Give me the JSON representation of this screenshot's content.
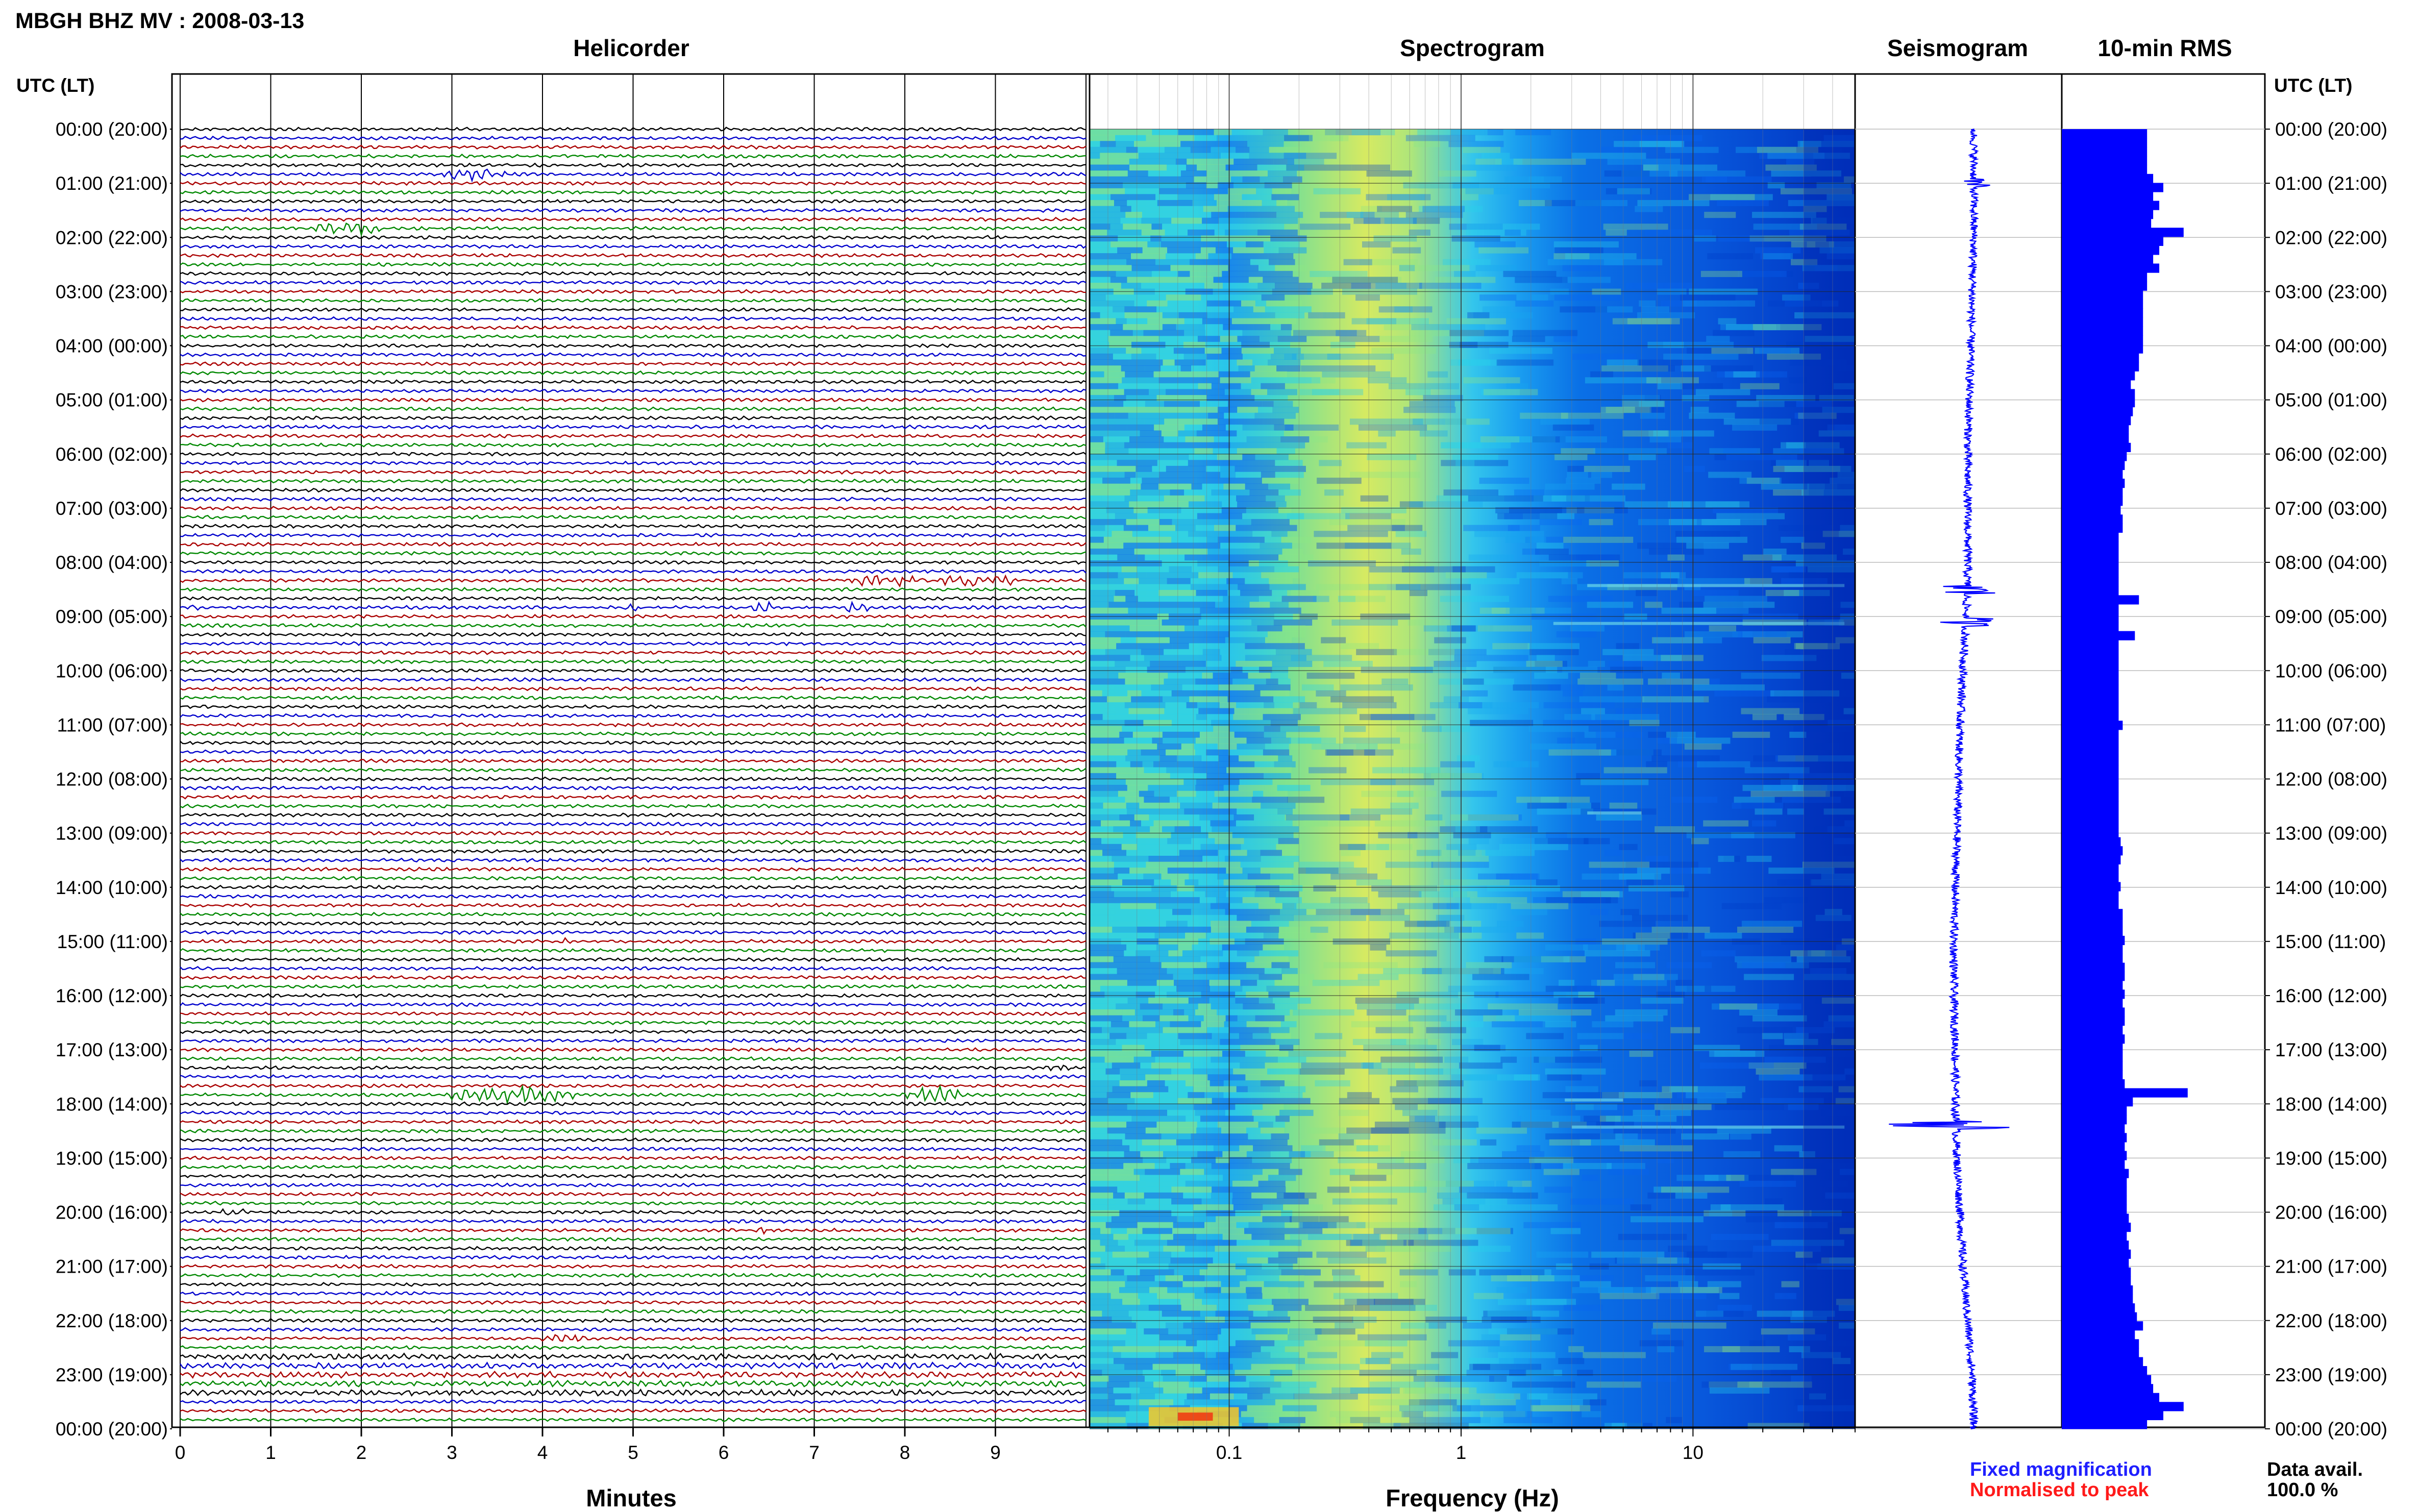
{
  "header": {
    "station_title": "MBGH BHZ MV : 2008-03-13",
    "time_axis_label": "UTC (LT)"
  },
  "panels": {
    "helicorder": "Helicorder",
    "spectrogram": "Spectrogram",
    "seismogram": "Seismogram",
    "rms": "10-min RMS"
  },
  "legend": {
    "fixed": "Fixed magnification",
    "normalised": "Normalised to peak",
    "fixed_color": "#1f1fff",
    "normalised_color": "#ff1a1a"
  },
  "data_avail": {
    "label": "Data avail.",
    "value": "100.0 %"
  },
  "colors": {
    "trace_cycle": [
      "#000000",
      "#0000cc",
      "#aa0000",
      "#008800"
    ],
    "rms_bar": "#0000ff",
    "seismogram": "#0000ff"
  },
  "chart_data": [
    {
      "type": "line",
      "name": "helicorder",
      "title": "Helicorder",
      "xlabel": "Minutes",
      "xlim": [
        0,
        10
      ],
      "xticks": [
        "0",
        "1",
        "2",
        "3",
        "4",
        "5",
        "6",
        "7",
        "8",
        "9"
      ],
      "rows_per_hour": 6,
      "total_hours": 24,
      "ylabels": [
        "00:00 (20:00)",
        "01:00 (21:00)",
        "02:00 (22:00)",
        "03:00 (23:00)",
        "04:00 (00:00)",
        "05:00 (01:00)",
        "06:00 (02:00)",
        "07:00 (03:00)",
        "08:00 (04:00)",
        "09:00 (05:00)",
        "10:00 (06:00)",
        "11:00 (07:00)",
        "12:00 (08:00)",
        "13:00 (09:00)",
        "14:00 (10:00)",
        "15:00 (11:00)",
        "16:00 (12:00)",
        "17:00 (13:00)",
        "18:00 (14:00)",
        "19:00 (15:00)",
        "20:00 (16:00)",
        "21:00 (17:00)",
        "22:00 (18:00)",
        "23:00 (19:00)",
        "00:00 (20:00)"
      ],
      "events": [
        {
          "row": 5,
          "start_min": 2.9,
          "end_min": 3.6,
          "amp": 2.5
        },
        {
          "row": 11,
          "start_min": 1.5,
          "end_min": 2.2,
          "amp": 3.0
        },
        {
          "row": 50,
          "start_min": 7.3,
          "end_min": 9.2,
          "amp": 3.0
        },
        {
          "row": 53,
          "start_min": 0.0,
          "end_min": 0.2,
          "amp": 2.0
        },
        {
          "row": 53,
          "start_min": 4.9,
          "end_min": 5.1,
          "amp": 2.0
        },
        {
          "row": 53,
          "start_min": 6.3,
          "end_min": 6.6,
          "amp": 2.0
        },
        {
          "row": 53,
          "start_min": 7.3,
          "end_min": 7.6,
          "amp": 2.5
        },
        {
          "row": 90,
          "start_min": 4.2,
          "end_min": 4.3,
          "amp": 1.5
        },
        {
          "row": 104,
          "start_min": 9.6,
          "end_min": 9.9,
          "amp": 2.0
        },
        {
          "row": 107,
          "start_min": 3.0,
          "end_min": 4.4,
          "amp": 4.0
        },
        {
          "row": 107,
          "start_min": 8.0,
          "end_min": 8.6,
          "amp": 4.0
        },
        {
          "row": 120,
          "start_min": 0.4,
          "end_min": 0.7,
          "amp": 2.0
        },
        {
          "row": 122,
          "start_min": 6.3,
          "end_min": 6.5,
          "amp": 1.5
        },
        {
          "row": 134,
          "start_min": 4.0,
          "end_min": 4.5,
          "amp": 1.5
        }
      ]
    },
    {
      "type": "heatmap",
      "name": "spectrogram",
      "title": "Spectrogram",
      "xlabel": "Frequency (Hz)",
      "xscale": "log",
      "xlim": [
        0.025,
        50
      ],
      "xticks": [
        {
          "value": 0.1,
          "label": "0.1"
        },
        {
          "value": 1,
          "label": "1"
        },
        {
          "value": 10,
          "label": "10"
        }
      ],
      "colormap": [
        "#003cc8",
        "#0a64f0",
        "#16a6f0",
        "#28d2ec",
        "#8ce686",
        "#dcec5a",
        "#f4c828",
        "#f03c14"
      ]
    },
    {
      "type": "line",
      "name": "seismogram",
      "title": "Seismogram",
      "hourly_offset": [
        0.5,
        0.5,
        0.5,
        0.45,
        0.4,
        0.35,
        0.3,
        0.3,
        0.3,
        0.25,
        0.15,
        0.05,
        0.0,
        -0.05,
        -0.1,
        -0.15,
        -0.15,
        -0.1,
        -0.1,
        -0.05,
        0.05,
        0.15,
        0.3,
        0.45,
        0.5
      ],
      "spikes": [
        {
          "hour": 1.0,
          "amp": 0.3
        },
        {
          "hour": 8.5,
          "amp": 0.8
        },
        {
          "hour": 9.1,
          "amp": 0.6
        },
        {
          "hour": 18.4,
          "amp": 1.6
        }
      ]
    },
    {
      "type": "bar",
      "name": "rms",
      "title": "10-min RMS",
      "orientation": "horizontal",
      "values": [
        42,
        42,
        42,
        42,
        42,
        45,
        50,
        45,
        48,
        45,
        44,
        60,
        50,
        48,
        45,
        48,
        42,
        42,
        40,
        40,
        40,
        40,
        40,
        40,
        40,
        38,
        38,
        36,
        34,
        36,
        36,
        35,
        34,
        33,
        33,
        34,
        32,
        31,
        30,
        31,
        30,
        30,
        29,
        30,
        30,
        28,
        28,
        28,
        28,
        28,
        28,
        28,
        38,
        28,
        28,
        28,
        36,
        28,
        28,
        28,
        28,
        28,
        28,
        28,
        28,
        28,
        30,
        28,
        28,
        28,
        28,
        28,
        28,
        28,
        28,
        28,
        28,
        28,
        28,
        29,
        30,
        29,
        28,
        28,
        29,
        28,
        28,
        30,
        30,
        30,
        31,
        30,
        30,
        31,
        31,
        30,
        31,
        30,
        31,
        31,
        30,
        31,
        30,
        30,
        30,
        30,
        31,
        62,
        35,
        32,
        32,
        31,
        32,
        31,
        32,
        31,
        33,
        32,
        32,
        32,
        32,
        33,
        34,
        32,
        33,
        34,
        33,
        34,
        34,
        35,
        35,
        36,
        37,
        40,
        36,
        38,
        38,
        40,
        42,
        44,
        45,
        48,
        60,
        50,
        42
      ]
    }
  ]
}
